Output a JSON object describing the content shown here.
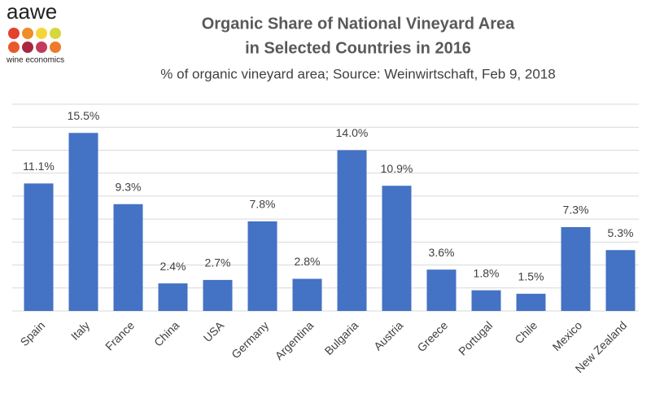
{
  "logo": {
    "name": "aawe",
    "tagline": "wine economics"
  },
  "chart_data": {
    "type": "bar",
    "title": [
      "Organic Share of National Vineyard Area",
      "in Selected Countries in 2016"
    ],
    "subtitle": "% of organic vineyard area; Source: Weinwirtschaft, Feb 9, 2018",
    "categories": [
      "Spain",
      "Italy",
      "France",
      "China",
      "USA",
      "Germany",
      "Argentina",
      "Bulgaria",
      "Austria",
      "Greece",
      "Portugal",
      "Chile",
      "Mexico",
      "New Zealand"
    ],
    "values": [
      11.1,
      15.5,
      9.3,
      2.4,
      2.7,
      7.8,
      2.8,
      14.0,
      10.9,
      3.6,
      1.8,
      1.5,
      7.3,
      5.3
    ],
    "value_labels": [
      "11.1%",
      "15.5%",
      "9.3%",
      "2.4%",
      "2.7%",
      "7.8%",
      "2.8%",
      "14.0%",
      "10.9%",
      "3.6%",
      "1.8%",
      "1.5%",
      "7.3%",
      "5.3%"
    ],
    "color": "#4472c4",
    "ylim": [
      0,
      18
    ],
    "yticks": [
      0,
      2,
      4,
      6,
      8,
      10,
      12,
      14,
      16,
      18
    ],
    "grid": true
  }
}
